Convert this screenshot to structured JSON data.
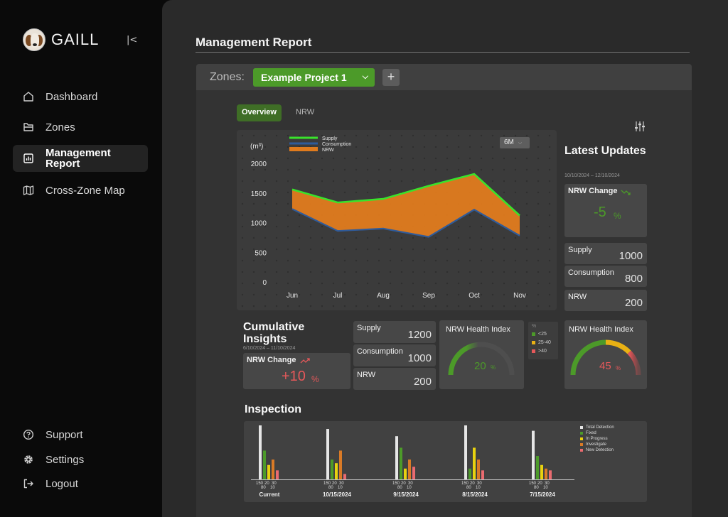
{
  "app": {
    "name": "GAILL"
  },
  "sidebar": {
    "items": [
      {
        "label": "Dashboard"
      },
      {
        "label": "Zones"
      },
      {
        "label": "Management Report"
      },
      {
        "label": "Cross-Zone Map"
      }
    ],
    "bottom_items": [
      {
        "label": "Support"
      },
      {
        "label": "Settings"
      },
      {
        "label": "Logout"
      }
    ]
  },
  "page": {
    "title": "Management Report"
  },
  "zones": {
    "label": "Zones:",
    "selected": "Example Project 1",
    "add_label": "+"
  },
  "tabs": [
    {
      "label": "Overview"
    },
    {
      "label": "NRW"
    }
  ],
  "chart": {
    "range_select": "6M",
    "unit_label": "(m³)"
  },
  "chart_data": {
    "type": "area",
    "categories": [
      "Jun",
      "Jul",
      "Aug",
      "Sep",
      "Oct",
      "Nov"
    ],
    "series": [
      {
        "name": "Supply",
        "values": [
          1560,
          1340,
          1400,
          1620,
          1820,
          1120
        ]
      },
      {
        "name": "Consumption",
        "values": [
          1230,
          860,
          900,
          760,
          1220,
          780
        ]
      },
      {
        "name": "NRW",
        "values": [
          330,
          480,
          500,
          860,
          600,
          340
        ]
      }
    ],
    "yticks": [
      0,
      500,
      1000,
      1500,
      2000
    ],
    "ylim": [
      0,
      2000
    ],
    "ylabel": "(m³)",
    "colors": {
      "supply": "#39e32b",
      "consumption": "#2f5b9a",
      "nrw": "#e07b1d"
    },
    "legend_position": "top-left",
    "grid": true
  },
  "latest": {
    "title": "Latest Updates",
    "dates": "10/10/2024 – 12/10/2024",
    "nrw_change": {
      "label": "NRW Change",
      "value": "-5",
      "unit": "%"
    },
    "supply": {
      "label": "Supply",
      "value": "1000"
    },
    "consumption": {
      "label": "Consumption",
      "value": "800"
    },
    "nrw": {
      "label": "NRW",
      "value": "200"
    },
    "health": {
      "label": "NRW Health Index",
      "value": "45",
      "unit": "%"
    }
  },
  "cumulative": {
    "title": "Cumulative Insights",
    "dates": "6/10/2024 – 11/10/2024",
    "nrw_change": {
      "label": "NRW Change",
      "value": "+10",
      "unit": "%"
    },
    "supply": {
      "label": "Supply",
      "value": "1200"
    },
    "consumption": {
      "label": "Consumption",
      "value": "1000"
    },
    "nrw": {
      "label": "NRW",
      "value": "200"
    },
    "health": {
      "label": "NRW Health Index",
      "value": "20",
      "unit": "%"
    }
  },
  "health_legend": {
    "title": "%",
    "items": [
      {
        "label": "<25",
        "color": "#4c9a29"
      },
      {
        "label": "25-40",
        "color": "#e9b114"
      },
      {
        "label": ">40",
        "color": "#e5585a"
      }
    ]
  },
  "inspection": {
    "title": "Inspection",
    "legend": [
      {
        "label": "Total Detection",
        "color": "#e6e6e6"
      },
      {
        "label": "Fixed",
        "color": "#4c9a29"
      },
      {
        "label": "In Progress",
        "color": "#e8d20f"
      },
      {
        "label": "Investigate",
        "color": "#d97a26"
      },
      {
        "label": "New Detection",
        "color": "#ea6b70"
      }
    ],
    "groups": [
      {
        "label": "Current",
        "values": [
          150,
          80,
          40,
          55,
          25
        ],
        "ticks": [
          "150",
          "20",
          "30",
          "80",
          "10"
        ]
      },
      {
        "label": "10/15/2024",
        "values": [
          140,
          55,
          45,
          80,
          15
        ],
        "ticks": [
          "150",
          "20",
          "30",
          "80",
          "10"
        ]
      },
      {
        "label": "9/15/2024",
        "values": [
          120,
          88,
          30,
          55,
          35
        ],
        "ticks": [
          "150",
          "20",
          "30",
          "80",
          "10"
        ]
      },
      {
        "label": "8/15/2024",
        "values": [
          150,
          30,
          88,
          55,
          25
        ],
        "ticks": [
          "150",
          "20",
          "30",
          "80",
          "10"
        ]
      },
      {
        "label": "7/15/2024",
        "values": [
          135,
          65,
          40,
          30,
          25
        ],
        "ticks": [
          "150",
          "20",
          "30",
          "80",
          "10"
        ]
      }
    ]
  }
}
